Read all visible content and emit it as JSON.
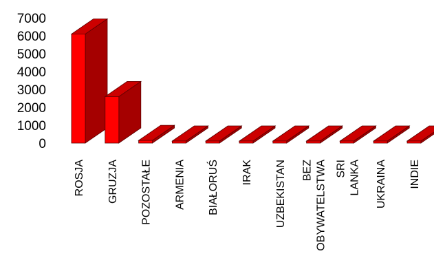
{
  "chart_data": {
    "type": "bar",
    "style": "3d",
    "categories": [
      "ROSJA",
      "GRUZJA",
      "POZOSTAŁE",
      "ARMENIA",
      "BIAŁORUŚ",
      "IRAK",
      "UZBEKISTAN",
      "BEZ OBYWATELSTWA",
      "SRI LANKA",
      "UKRAINA",
      "INDIE"
    ],
    "values": [
      6100,
      2600,
      150,
      20,
      15,
      10,
      10,
      10,
      10,
      10,
      10
    ],
    "ylim": [
      0,
      7000
    ],
    "yticks": [
      "0",
      "1000",
      "2000",
      "3000",
      "4000",
      "5000",
      "6000",
      "7000"
    ],
    "colors": {
      "front": "#ff0000",
      "side": "#a50000",
      "top": "#cc0000",
      "edge": "#5a0000"
    }
  }
}
